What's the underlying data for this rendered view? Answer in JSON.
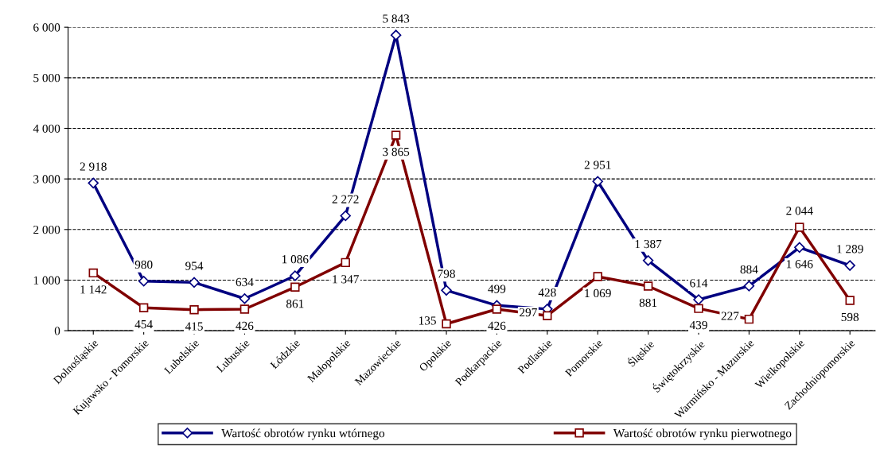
{
  "chart_data": {
    "type": "line",
    "categories": [
      "Dolnośląskie",
      "Kujawsko - Pomorskie",
      "Lubelskie",
      "Lubuskie",
      "Łódzkie",
      "Małopolskie",
      "Mazowieckie",
      "Opolskie",
      "Podkarpackie",
      "Podlaskie",
      "Pomorskie",
      "Śląskie",
      "Świętokrzyskie",
      "Warmińsko - Mazurskie",
      "Wielkopolskie",
      "Zachodniopomorskie"
    ],
    "series": [
      {
        "name": "Wartość obrotów rynku wtórnego",
        "color": "#000080",
        "marker": "diamond",
        "values": [
          2918,
          980,
          954,
          634,
          1086,
          2272,
          5843,
          798,
          499,
          428,
          2951,
          1387,
          614,
          884,
          1646,
          1289
        ],
        "value_labels": [
          "2 918",
          "980",
          "954",
          "634",
          "1 086",
          "2 272",
          "5 843",
          "798",
          "499",
          "428",
          "2 951",
          "1 387",
          "614",
          "884",
          "1 646",
          "1 289"
        ]
      },
      {
        "name": "Wartość obrotów rynku pierwotnego",
        "color": "#800000",
        "marker": "square",
        "values": [
          1142,
          454,
          415,
          426,
          861,
          1347,
          3865,
          135,
          426,
          297,
          1069,
          881,
          439,
          227,
          2044,
          598
        ],
        "value_labels": [
          "1 142",
          "454",
          "415",
          "426",
          "861",
          "1 347",
          "3 865",
          "135",
          "426",
          "297",
          "1 069",
          "881",
          "439",
          "227",
          "2 044",
          "598"
        ]
      }
    ],
    "ylim": [
      0,
      6000
    ],
    "yticks": [
      {
        "value": 0,
        "label": "0"
      },
      {
        "value": 1000,
        "label": "1 000"
      },
      {
        "value": 2000,
        "label": "2 000"
      },
      {
        "value": 3000,
        "label": "3 000"
      },
      {
        "value": 4000,
        "label": "4 000"
      },
      {
        "value": 5000,
        "label": "5 000"
      },
      {
        "value": 6000,
        "label": "6 000"
      }
    ],
    "grid": "y",
    "legend": "bottom",
    "line_style": "solid"
  }
}
